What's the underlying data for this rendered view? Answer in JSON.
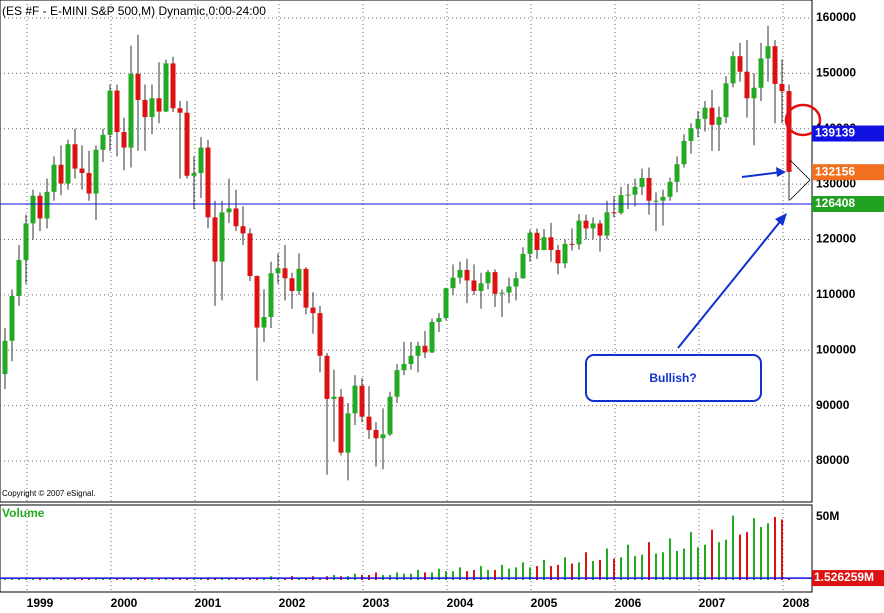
{
  "chart_data": [
    {
      "type": "candlestick",
      "title": "(ES #F - E-MINI S&P 500,M) Dynamic,0:00-24:00",
      "annotations": [
        "Copyright © 2007 eSignal.",
        "Bullish?"
      ],
      "categories": [
        null,
        null,
        null,
        null,
        "1999",
        null,
        null,
        null,
        null,
        null,
        null,
        null,
        null,
        null,
        null,
        null,
        "2000",
        null,
        null,
        null,
        null,
        null,
        null,
        null,
        null,
        null,
        null,
        null,
        "2001",
        null,
        null,
        null,
        null,
        null,
        null,
        null,
        null,
        null,
        null,
        null,
        "2002",
        null,
        null,
        null,
        null,
        null,
        null,
        null,
        null,
        null,
        null,
        null,
        "2003",
        null,
        null,
        null,
        null,
        null,
        null,
        null,
        null,
        null,
        null,
        null,
        "2004",
        null,
        null,
        null,
        null,
        null,
        null,
        null,
        null,
        null,
        null,
        null,
        "2005",
        null,
        null,
        null,
        null,
        null,
        null,
        null,
        null,
        null,
        null,
        null,
        "2006",
        null,
        null,
        null,
        null,
        null,
        null,
        null,
        null,
        null,
        null,
        null,
        "2007",
        null,
        null,
        null,
        null,
        null,
        null,
        null,
        null,
        null,
        null,
        null,
        "2008"
      ],
      "open": [
        95700,
        101700,
        109800,
        116300,
        122900,
        127900,
        123800,
        128600,
        133500,
        130100,
        137200,
        132800,
        132000,
        128300,
        136200,
        138900,
        146900,
        139400,
        136600,
        149900,
        145200,
        142100,
        145500,
        143100,
        151800,
        143700,
        142900,
        131500,
        132000,
        136600,
        124000,
        116000,
        124900,
        125600,
        122400,
        121100,
        113400,
        104100,
        106000,
        113900,
        114800,
        113000,
        110700,
        114700,
        107700,
        106700,
        99000,
        91200,
        91600,
        81500,
        88600,
        93600,
        88000,
        85600,
        84100,
        84800,
        91600,
        96400,
        97500,
        99000,
        100800,
        99600,
        105100,
        105800,
        111200,
        113100,
        114500,
        112600,
        110700,
        112100,
        114100,
        110200,
        110400,
        111500,
        113000,
        117400,
        121200,
        118100,
        120400,
        118100,
        115700,
        119200,
        119100,
        123400,
        122000,
        122900,
        120700,
        124900,
        124800,
        128000,
        128100,
        129500,
        131100,
        127000,
        127000,
        127700,
        130400,
        133600,
        137800,
        140100,
        141800,
        143800,
        140700,
        142100,
        148200,
        153100,
        150300,
        145500,
        147400,
        152700,
        154900,
        148100,
        146800
      ],
      "high": [
        104000,
        111000,
        119000,
        124500,
        129000,
        128500,
        131000,
        135000,
        137000,
        138000,
        140000,
        137000,
        136000,
        137000,
        140000,
        148000,
        148000,
        142000,
        155000,
        157000,
        148000,
        148000,
        152000,
        152500,
        153000,
        145000,
        145000,
        135000,
        138500,
        138000,
        127000,
        127000,
        131000,
        129000,
        126000,
        122000,
        113500,
        111000,
        116000,
        117500,
        119000,
        114000,
        117500,
        115000,
        110500,
        108000,
        99500,
        96500,
        93000,
        90500,
        95500,
        95000,
        93500,
        87000,
        89500,
        92500,
        97500,
        101500,
        101500,
        101500,
        103500,
        105700,
        106700,
        111300,
        115500,
        116000,
        116500,
        115500,
        114000,
        114500,
        114600,
        111000,
        113100,
        114100,
        118600,
        121800,
        122000,
        121900,
        123000,
        119000,
        120000,
        122000,
        124600,
        124500,
        124000,
        123500,
        127000,
        127800,
        129500,
        130000,
        131000,
        132800,
        133000,
        128500,
        129000,
        131200,
        135000,
        139000,
        141000,
        143200,
        145000,
        147000,
        144000,
        149500,
        154000,
        155500,
        156000,
        150000,
        155500,
        158600,
        156000,
        152500,
        148000
      ],
      "low": [
        93000,
        98000,
        108000,
        112000,
        120000,
        121500,
        122000,
        127000,
        128000,
        129000,
        131000,
        129000,
        127000,
        123500,
        134000,
        136000,
        135000,
        132500,
        133000,
        136000,
        136000,
        139000,
        141000,
        143000,
        143000,
        131000,
        131000,
        125500,
        127500,
        122000,
        108000,
        109000,
        123000,
        121500,
        119000,
        112500,
        94500,
        101500,
        104000,
        112000,
        109000,
        107500,
        110000,
        106500,
        103000,
        96000,
        77500,
        83500,
        81000,
        76500,
        86500,
        87000,
        84000,
        79000,
        78500,
        84500,
        90500,
        95500,
        96500,
        96000,
        98600,
        99500,
        103300,
        105400,
        110000,
        112000,
        108500,
        110000,
        107500,
        111000,
        107800,
        106000,
        108500,
        109000,
        112900,
        116000,
        116500,
        118000,
        116000,
        113700,
        114800,
        118000,
        118200,
        120000,
        120000,
        117800,
        120000,
        124000,
        124500,
        125500,
        126000,
        128000,
        124500,
        121500,
        122500,
        127000,
        128500,
        133000,
        135500,
        138500,
        139500,
        136000,
        136000,
        141000,
        147500,
        148500,
        142000,
        137000,
        145000,
        148500,
        141000,
        141000,
        127000
      ],
      "close": [
        101700,
        109800,
        116300,
        122900,
        127900,
        123800,
        128600,
        133500,
        130100,
        137200,
        132800,
        132000,
        128300,
        136200,
        138900,
        146900,
        139400,
        136600,
        149900,
        145200,
        142100,
        145500,
        143100,
        151800,
        143700,
        142900,
        131500,
        132000,
        136600,
        124000,
        116000,
        124900,
        125600,
        122400,
        121100,
        113400,
        104100,
        106000,
        113900,
        114800,
        113000,
        110700,
        114700,
        107700,
        106700,
        99000,
        91200,
        91600,
        81500,
        88600,
        93600,
        88000,
        85600,
        84100,
        84800,
        91600,
        96400,
        97500,
        99000,
        100800,
        99600,
        105100,
        105800,
        111200,
        113100,
        114500,
        112600,
        110700,
        112100,
        114100,
        110200,
        110400,
        111500,
        113000,
        117400,
        121200,
        118100,
        120400,
        118100,
        115700,
        119200,
        119100,
        123400,
        122000,
        122900,
        120700,
        124900,
        124800,
        128000,
        128100,
        129500,
        131100,
        127000,
        127000,
        127700,
        130400,
        133600,
        137800,
        140100,
        141800,
        143800,
        140700,
        142100,
        148200,
        153100,
        150300,
        145500,
        147400,
        152700,
        154900,
        148100,
        146800,
        132200
      ],
      "up_color": "#22aa22",
      "down_color": "#dd1111",
      "ylim": [
        72950,
        163250
      ],
      "yticks": [
        80000,
        90000,
        100000,
        110000,
        120000,
        130000,
        140000,
        150000,
        160000
      ],
      "markers": [
        {
          "value": 139139,
          "color": "#1010e0"
        },
        {
          "value": 132156,
          "color": "#f07020"
        },
        {
          "value": 126408,
          "color": "#20a020"
        }
      ],
      "grid": true
    },
    {
      "type": "bar",
      "title": "Volume",
      "values": [
        1,
        1,
        1,
        1,
        1,
        1,
        1,
        1,
        1,
        1,
        1,
        1,
        1,
        1,
        1,
        1,
        1,
        1,
        1,
        1,
        1,
        1,
        1,
        1,
        2,
        2,
        2,
        2,
        2,
        2,
        2,
        2,
        2,
        2,
        2,
        2,
        2,
        2,
        3,
        2,
        2,
        3,
        2,
        2,
        3,
        2,
        3,
        4,
        3,
        3,
        5,
        4,
        4,
        6,
        4,
        4,
        6,
        5,
        5,
        8,
        6,
        6,
        9,
        7,
        7,
        10,
        7,
        8,
        11,
        8,
        8,
        12,
        9,
        10,
        14,
        10,
        11,
        16,
        11,
        12,
        18,
        13,
        14,
        22,
        15,
        16,
        25,
        17,
        18,
        28,
        19,
        20,
        30,
        21,
        22,
        33,
        23,
        25,
        38,
        26,
        28,
        40,
        30,
        32,
        51,
        36,
        38,
        49,
        42,
        45,
        50,
        48,
        1.526259
      ],
      "colors": [
        "#dd1111",
        "#22aa22"
      ],
      "ylim": [
        0,
        59.5
      ],
      "yticks": [
        {
          "value": 50,
          "label": "50M"
        }
      ],
      "markers": [
        {
          "value": 1.526259,
          "label": "1.526259M",
          "color": "#dd1111"
        }
      ],
      "hline_color": "#1010e0"
    }
  ]
}
